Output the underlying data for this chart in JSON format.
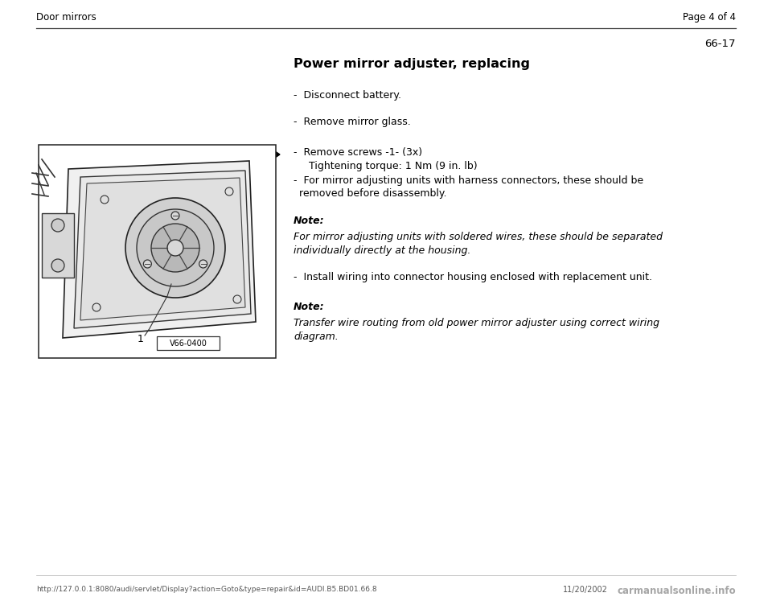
{
  "page_bg": "#ffffff",
  "font_color": "#000000",
  "header_left": "Door mirrors",
  "header_right": "Page 4 of 4",
  "page_number": "66-17",
  "title": "Power mirror adjuster, replacing",
  "bullet1": "Disconnect battery.",
  "bullet2": "Remove mirror glass.",
  "arrow_bullet1": "Remove screws -1- (3x)",
  "arrow_indent1": "   Tightening torque: 1 Nm (9 in. lb)",
  "arrow_bullet2": "For mirror adjusting units with harness connectors, these should be",
  "arrow_bullet2b": "removed before disassembly.",
  "note1_label": "Note:",
  "note1_line1": "For mirror adjusting units with soldered wires, these should be separated",
  "note1_line2": "individually directly at the housing.",
  "install_bullet": "Install wiring into connector housing enclosed with replacement unit.",
  "note2_label": "Note:",
  "note2_line1": "Transfer wire routing from old power mirror adjuster using correct wiring",
  "note2_line2": "diagram.",
  "footer_url": "http://127.0.0.1:8080/audi/servlet/Display?action=Goto&type=repair&id=AUDI.B5.BD01.66.8",
  "footer_date": "11/20/2002",
  "footer_watermark": "carmanualsonline.info",
  "img_label": "1",
  "img_code": "V66-0400"
}
